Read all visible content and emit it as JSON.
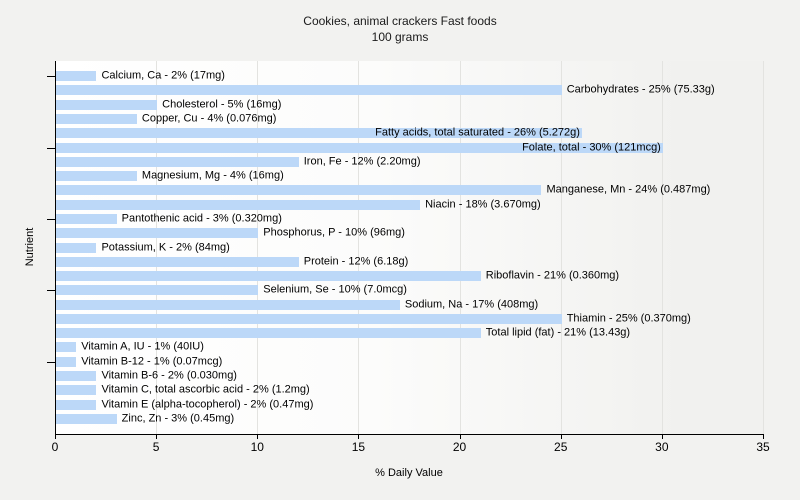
{
  "title": {
    "line1": "Cookies, animal crackers Fast foods",
    "line2": "100 grams"
  },
  "chart_data": {
    "type": "bar",
    "orientation": "horizontal",
    "title": "Cookies, animal crackers Fast foods",
    "subtitle": "100 grams",
    "xlabel": "% Daily Value",
    "ylabel": "Nutrient",
    "xlim": [
      0,
      35
    ],
    "xticks": [
      0,
      5,
      10,
      15,
      20,
      25,
      30,
      35
    ],
    "ytick_category_indices": [
      0,
      5,
      10,
      15,
      20
    ],
    "grid": "vertical-major",
    "legend": false,
    "colors": {
      "bar": "#bcd8f8",
      "figure_background": "#f2f2f0",
      "plot_gradient_left": "#ffffff",
      "plot_gradient_right": "#f1f1ef",
      "gridline": "#e3e3e0",
      "axis": "#000000",
      "text": "#000000"
    },
    "categories": [
      "Calcium, Ca",
      "Carbohydrates",
      "Cholesterol",
      "Copper, Cu",
      "Fatty acids, total saturated",
      "Folate, total",
      "Iron, Fe",
      "Magnesium, Mg",
      "Manganese, Mn",
      "Niacin",
      "Pantothenic acid",
      "Phosphorus, P",
      "Potassium, K",
      "Protein",
      "Riboflavin",
      "Selenium, Se",
      "Sodium, Na",
      "Thiamin",
      "Total lipid (fat)",
      "Vitamin A, IU",
      "Vitamin B-12",
      "Vitamin B-6",
      "Vitamin C, total ascorbic acid",
      "Vitamin E (alpha-tocopherol)",
      "Zinc, Zn"
    ],
    "values": [
      2,
      25,
      5,
      4,
      26,
      30,
      12,
      4,
      24,
      18,
      3,
      10,
      2,
      12,
      21,
      10,
      17,
      25,
      21,
      1,
      1,
      2,
      2,
      2,
      3
    ],
    "amounts": [
      "17mg",
      "75.33g",
      "16mg",
      "0.076mg",
      "5.272g",
      "121mcg",
      "2.20mg",
      "16mg",
      "0.487mg",
      "3.670mg",
      "0.320mg",
      "96mg",
      "84mg",
      "6.18g",
      "0.360mg",
      "7.0mcg",
      "408mg",
      "0.370mg",
      "13.43g",
      "40IU",
      "0.07mcg",
      "0.030mg",
      "1.2mg",
      "0.47mg",
      "0.45mg"
    ],
    "bar_labels": [
      "Calcium, Ca - 2% (17mg)",
      "Carbohydrates - 25% (75.33g)",
      "Cholesterol - 5% (16mg)",
      "Copper, Cu - 4% (0.076mg)",
      "Fatty acids, total saturated - 26% (5.272g)",
      "Folate, total - 30% (121mcg)",
      "Iron, Fe - 12% (2.20mg)",
      "Magnesium, Mg - 4% (16mg)",
      "Manganese, Mn - 24% (0.487mg)",
      "Niacin - 18% (3.670mg)",
      "Pantothenic acid - 3% (0.320mg)",
      "Phosphorus, P - 10% (96mg)",
      "Potassium, K - 2% (84mg)",
      "Protein - 12% (6.18g)",
      "Riboflavin - 21% (0.360mg)",
      "Selenium, Se - 10% (7.0mcg)",
      "Sodium, Na - 17% (408mg)",
      "Thiamin - 25% (0.370mg)",
      "Total lipid (fat) - 21% (13.43g)",
      "Vitamin A, IU - 1% (40IU)",
      "Vitamin B-12 - 1% (0.07mcg)",
      "Vitamin B-6 - 2% (0.030mg)",
      "Vitamin C, total ascorbic acid - 2% (1.2mg)",
      "Vitamin E (alpha-tocopherol) - 2% (0.47mg)",
      "Zinc, Zn - 3% (0.45mg)"
    ]
  }
}
